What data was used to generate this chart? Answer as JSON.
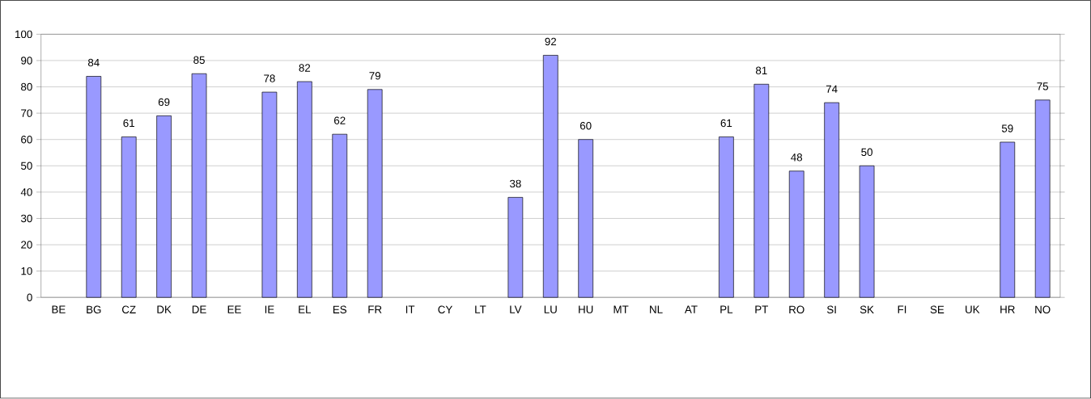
{
  "chart_data": {
    "type": "bar",
    "categories": [
      "BE",
      "BG",
      "CZ",
      "DK",
      "DE",
      "EE",
      "IE",
      "EL",
      "ES",
      "FR",
      "IT",
      "CY",
      "LT",
      "LV",
      "LU",
      "HU",
      "MT",
      "NL",
      "AT",
      "PL",
      "PT",
      "RO",
      "SI",
      "SK",
      "FI",
      "SE",
      "UK",
      "HR",
      "NO"
    ],
    "values": [
      null,
      84,
      61,
      69,
      85,
      null,
      78,
      82,
      62,
      79,
      null,
      null,
      null,
      38,
      92,
      60,
      null,
      null,
      null,
      61,
      81,
      48,
      74,
      50,
      null,
      null,
      null,
      59,
      75
    ],
    "color": "#9999ff",
    "ylim": [
      0,
      100
    ],
    "yticks": [
      0,
      10,
      20,
      30,
      40,
      50,
      60,
      70,
      80,
      90,
      100
    ],
    "grid": "y",
    "data_labels": true
  }
}
